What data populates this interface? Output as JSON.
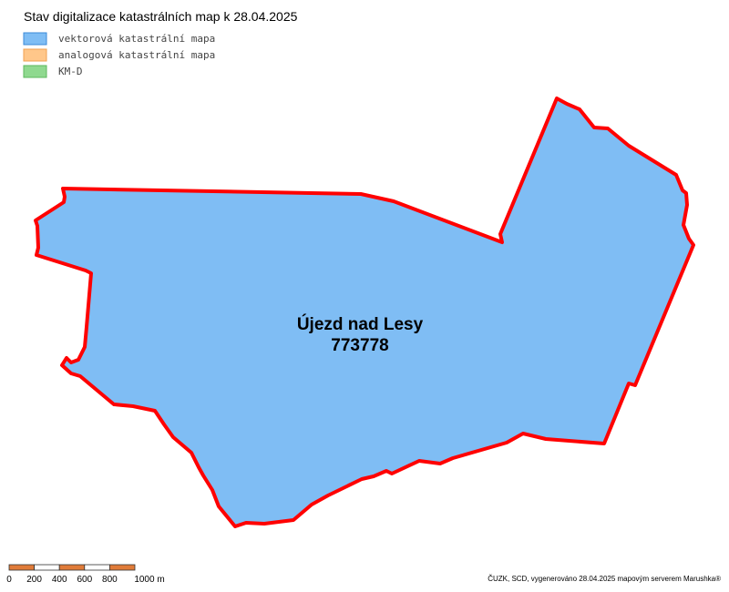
{
  "header": {
    "title": "Stav digitalizace katastrálních map k 28.04.2025"
  },
  "legend": {
    "items": [
      {
        "label": "vektorová katastrální mapa",
        "color": "#7fbdf4",
        "border": "#3b8ad9"
      },
      {
        "label": "analogová katastrální mapa",
        "color": "#ffc78a",
        "border": "#f0a050"
      },
      {
        "label": "KM-D",
        "color": "#8fd98f",
        "border": "#5cb85c"
      }
    ]
  },
  "parcel": {
    "name": "Újezd nad Lesy",
    "code": "773778"
  },
  "scale_bar": {
    "labels": [
      "0",
      "200",
      "400",
      "600",
      "800",
      "1000 m"
    ]
  },
  "footer": {
    "credit": "ČUZK, SCD, vygenerováno 28.04.2025 mapovým serverem Marushka®"
  }
}
